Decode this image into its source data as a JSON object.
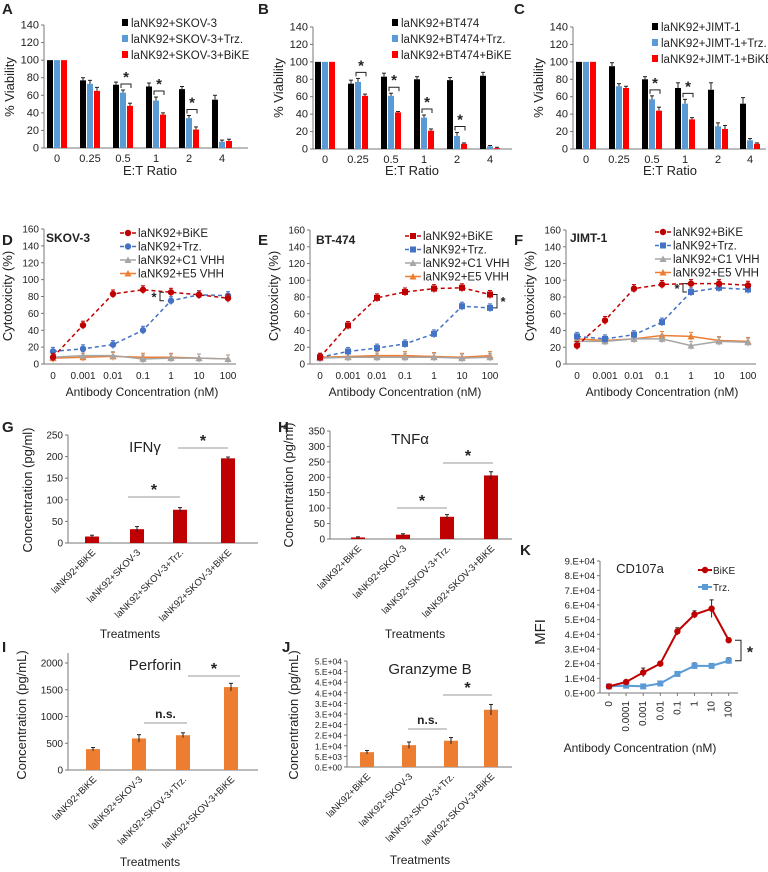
{
  "chart_data": [
    {
      "panel": "A",
      "type": "bar",
      "xlabel": "E:T Ratio",
      "ylabel": "% Viability",
      "categories": [
        "0",
        "0.25",
        "0.5",
        "1",
        "2",
        "4"
      ],
      "ylim": [
        0,
        140
      ],
      "yticks": [
        "0",
        "20",
        "40",
        "60",
        "80",
        "100",
        "120",
        "140"
      ],
      "legend": "top-right",
      "series": [
        {
          "name": "laNK92+SKOV-3",
          "color": "#000000",
          "values": [
            100,
            77,
            72,
            70,
            67,
            55
          ],
          "errors": [
            0,
            3,
            3,
            4,
            3,
            5
          ]
        },
        {
          "name": "laNK92+SKOV-3+Trz.",
          "color": "#5b9bd5",
          "values": [
            100,
            73,
            63,
            54,
            34,
            7
          ],
          "errors": [
            0,
            4,
            3,
            4,
            3,
            2
          ]
        },
        {
          "name": "laNK92+SKOV-3+BiKE",
          "color": "#ff0000",
          "values": [
            100,
            65,
            48,
            38,
            21,
            8
          ],
          "errors": [
            0,
            4,
            3,
            2,
            3,
            2
          ]
        }
      ],
      "significance": [
        {
          "category": 2,
          "label": "*"
        },
        {
          "category": 3,
          "label": "*"
        },
        {
          "category": 4,
          "label": "*"
        }
      ]
    },
    {
      "panel": "B",
      "type": "bar",
      "xlabel": "E:T Ratio",
      "ylabel": "% Viability",
      "categories": [
        "0",
        "0.25",
        "0.5",
        "1",
        "2",
        "4"
      ],
      "ylim": [
        0,
        140
      ],
      "yticks": [
        "0",
        "20",
        "40",
        "60",
        "80",
        "100",
        "120",
        "140"
      ],
      "legend": "top-right",
      "series": [
        {
          "name": "laNK92+BT474",
          "color": "#000000",
          "values": [
            100,
            75,
            83,
            80,
            79,
            84
          ],
          "errors": [
            0,
            4,
            4,
            3,
            3,
            4
          ]
        },
        {
          "name": "laNK92+BT474+Trz.",
          "color": "#5b9bd5",
          "values": [
            100,
            77,
            61,
            36,
            15,
            3
          ],
          "errors": [
            0,
            4,
            3,
            3,
            4,
            1
          ]
        },
        {
          "name": "laNK92+BT474+BiKE",
          "color": "#ff0000",
          "values": [
            100,
            61,
            42,
            21,
            6,
            1
          ],
          "errors": [
            0,
            2,
            1,
            2,
            1,
            1
          ]
        }
      ],
      "significance": [
        {
          "category": 1,
          "label": "*"
        },
        {
          "category": 2,
          "label": "*"
        },
        {
          "category": 3,
          "label": "*"
        },
        {
          "category": 4,
          "label": "*"
        }
      ]
    },
    {
      "panel": "C",
      "type": "bar",
      "xlabel": "E:T Ratio",
      "ylabel": "% Viability",
      "categories": [
        "0",
        "0.25",
        "0.5",
        "1",
        "2",
        "4"
      ],
      "ylim": [
        0,
        140
      ],
      "yticks": [
        "0",
        "20",
        "40",
        "60",
        "80",
        "100",
        "120",
        "140"
      ],
      "legend": "top-right",
      "series": [
        {
          "name": "laNK92+JIMT-1",
          "color": "#000000",
          "values": [
            100,
            95,
            80,
            70,
            68,
            52
          ],
          "errors": [
            0,
            4,
            3,
            6,
            8,
            7
          ]
        },
        {
          "name": "laNK92+JIMT-1+Trz.",
          "color": "#5b9bd5",
          "values": [
            100,
            72,
            57,
            52,
            26,
            10
          ],
          "errors": [
            0,
            3,
            4,
            5,
            4,
            2
          ]
        },
        {
          "name": "laNK92+JIMT-1+BiKE",
          "color": "#ff0000",
          "values": [
            100,
            70,
            44,
            34,
            23,
            6
          ],
          "errors": [
            0,
            2,
            4,
            2,
            4,
            1
          ]
        }
      ],
      "significance": [
        {
          "category": 2,
          "label": "*"
        },
        {
          "category": 3,
          "label": "*"
        }
      ]
    },
    {
      "panel": "D",
      "type": "line",
      "cell_line": "SKOV-3",
      "xlabel": "Antibody Concentration (nM)",
      "ylabel": "Cytotoxicity (%)",
      "categories": [
        "0",
        "0.001",
        "0.01",
        "0.1",
        "1",
        "10",
        "100"
      ],
      "ylim": [
        0,
        160
      ],
      "yticks": [
        "0",
        "20",
        "40",
        "60",
        "80",
        "100",
        "120",
        "140",
        "160"
      ],
      "legend": "top-right",
      "series": [
        {
          "name": "laNK92+BiKE",
          "color": "#c00000",
          "marker": "circle",
          "dashed": true,
          "values": [
            8,
            46,
            83,
            88,
            85,
            82,
            78
          ]
        },
        {
          "name": "laNK92+Trz.",
          "color": "#4472c4",
          "marker": "circle",
          "dashed": true,
          "values": [
            15,
            18,
            23,
            40,
            75,
            82,
            81
          ]
        },
        {
          "name": "laNK92+C1 VHH",
          "color": "#a5a5a5",
          "marker": "triangle",
          "dashed": false,
          "values": [
            8,
            10,
            10,
            6,
            7,
            7,
            6
          ]
        },
        {
          "name": "laNK92+E5 VHH",
          "color": "#ed7d31",
          "marker": "triangle",
          "dashed": false,
          "values": [
            7,
            8,
            9,
            8,
            8,
            7,
            6
          ]
        }
      ],
      "significance": [
        {
          "category": 4,
          "label": "*"
        }
      ]
    },
    {
      "panel": "E",
      "type": "line",
      "cell_line": "BT-474",
      "xlabel": "Antibody Concentration (nM)",
      "ylabel": "Cytotoxicity (%)",
      "categories": [
        "0",
        "0.001",
        "0.01",
        "0.1",
        "1",
        "10",
        "100"
      ],
      "ylim": [
        0,
        160
      ],
      "yticks": [
        "0",
        "20",
        "40",
        "60",
        "80",
        "100",
        "120",
        "140",
        "160"
      ],
      "legend": "top-right",
      "series": [
        {
          "name": "laNK92+BiKE",
          "color": "#c00000",
          "marker": "square",
          "dashed": true,
          "values": [
            8,
            46,
            79,
            86,
            90,
            91,
            83
          ]
        },
        {
          "name": "laNK92+Trz.",
          "color": "#4472c4",
          "marker": "square",
          "dashed": true,
          "values": [
            8,
            15,
            19,
            24,
            36,
            69,
            67
          ]
        },
        {
          "name": "laNK92+C1 VHH",
          "color": "#a5a5a5",
          "marker": "triangle",
          "dashed": false,
          "values": [
            7,
            8,
            8,
            8,
            8,
            7,
            8
          ]
        },
        {
          "name": "laNK92+E5 VHH",
          "color": "#ed7d31",
          "marker": "triangle",
          "dashed": false,
          "values": [
            8,
            9,
            10,
            10,
            9,
            8,
            10
          ]
        }
      ],
      "significance": [
        {
          "category": 6,
          "label": "*"
        }
      ]
    },
    {
      "panel": "F",
      "type": "line",
      "cell_line": "JIMT-1",
      "xlabel": "Antibody Concentration (nM)",
      "ylabel": "Cytotoxicity (%)",
      "categories": [
        "0",
        "0.001",
        "0.01",
        "0.1",
        "1",
        "10",
        "100"
      ],
      "ylim": [
        0,
        160
      ],
      "yticks": [
        "0",
        "20",
        "40",
        "60",
        "80",
        "100",
        "120",
        "140",
        "160"
      ],
      "legend": "top-right",
      "series": [
        {
          "name": "laNK92+BiKE",
          "color": "#c00000",
          "marker": "circle",
          "dashed": true,
          "values": [
            22,
            52,
            90,
            95,
            96,
            96,
            94
          ]
        },
        {
          "name": "laNK92+Trz.",
          "color": "#4472c4",
          "marker": "square",
          "dashed": true,
          "values": [
            33,
            30,
            35,
            50,
            86,
            91,
            89
          ]
        },
        {
          "name": "laNK92+C1 VHH",
          "color": "#a5a5a5",
          "marker": "triangle",
          "dashed": false,
          "values": [
            27,
            27,
            30,
            30,
            22,
            27,
            26
          ]
        },
        {
          "name": "laNK92+E5 VHH",
          "color": "#ed7d31",
          "marker": "triangle",
          "dashed": false,
          "values": [
            30,
            28,
            30,
            34,
            33,
            28,
            27
          ]
        }
      ],
      "significance": [
        {
          "category": 4,
          "label": "*"
        }
      ]
    },
    {
      "panel": "G",
      "type": "bar",
      "title": "IFNγ",
      "xlabel": "Treatments",
      "ylabel": "Concentration  (pg/ml)",
      "categories": [
        "laNK92+BiKE",
        "laNK92+SKOV-3",
        "laNK92+SKOV-3+Trz.",
        "laNK92+SKOV-3+BiKE"
      ],
      "ylim": [
        0,
        250
      ],
      "yticks": [
        "0",
        "50",
        "100",
        "150",
        "200",
        "250"
      ],
      "color": "#c00000",
      "values": [
        15,
        32,
        77,
        196
      ],
      "errors": [
        3,
        6,
        5,
        3
      ],
      "significance": [
        {
          "from": 1,
          "to": 2,
          "label": "*"
        },
        {
          "from": 2,
          "to": 3,
          "label": "*"
        }
      ]
    },
    {
      "panel": "H",
      "type": "bar",
      "title": "TNFα",
      "xlabel": "Treatments",
      "ylabel": "Concentration (pg/ml)",
      "categories": [
        "laNK92+BiKE",
        "laNK92+SKOV-3",
        "laNK92+SKOV-3+Trz.",
        "laNK92+SKOV-3+BiKE"
      ],
      "ylim": [
        0,
        350
      ],
      "yticks": [
        "0",
        "50",
        "100",
        "150",
        "200",
        "250",
        "300",
        "350"
      ],
      "color": "#c00000",
      "values": [
        5,
        14,
        72,
        206
      ],
      "errors": [
        2,
        3,
        7,
        12
      ],
      "significance": [
        {
          "from": 1,
          "to": 2,
          "label": "*"
        },
        {
          "from": 2,
          "to": 3,
          "label": "*"
        }
      ]
    },
    {
      "panel": "I",
      "type": "bar",
      "title": "Perforin",
      "xlabel": "Treatments",
      "ylabel": "Concentration  (pg/mL)",
      "categories": [
        "laNK92+BiKE",
        "laNK92+SKOV-3",
        "laNK92+SKOV-3+Trz.",
        "laNK92+SKOV-3+BiKE"
      ],
      "ylim": [
        0,
        2000
      ],
      "yticks": [
        "0",
        "500",
        "1000",
        "1500",
        "2000"
      ],
      "color": "#ed7d31",
      "values": [
        390,
        590,
        650,
        1550
      ],
      "errors": [
        30,
        70,
        45,
        70
      ],
      "significance": [
        {
          "from": 1,
          "to": 2,
          "label": "n.s."
        },
        {
          "from": 2,
          "to": 3,
          "label": "*"
        }
      ]
    },
    {
      "panel": "J",
      "type": "bar",
      "title": "Granzyme B",
      "xlabel": "Treatments",
      "ylabel": "Concentration (pg/mL)",
      "categories": [
        "laNK92+BiKE",
        "laNK92+SKOV-3",
        "laNK92+SKOV-3+Trz.",
        "laNK92+SKOV-3+BiKE"
      ],
      "ylim": [
        0,
        50000
      ],
      "yticks": [
        "0.E+00",
        "5.E+03",
        "1.E+04",
        "2.E+04",
        "2.E+04",
        "3.E+04",
        "3.E+04",
        "4.E+04",
        "4.E+04",
        "5.E+04",
        "5.E+04"
      ],
      "color": "#ed7d31",
      "values": [
        7000,
        10300,
        12400,
        27000
      ],
      "errors": [
        800,
        1500,
        1500,
        2500
      ],
      "significance": [
        {
          "from": 1,
          "to": 2,
          "label": "n.s."
        },
        {
          "from": 2,
          "to": 3,
          "label": "*"
        }
      ]
    },
    {
      "panel": "K",
      "type": "line",
      "title": "CD107a",
      "xlabel": "Antibody Concentration (nM)",
      "ylabel": "MFI",
      "categories": [
        "0",
        "0.0001",
        "0.001",
        "0.01",
        "0.1",
        "1",
        "10",
        "100"
      ],
      "ylim": [
        0,
        90000
      ],
      "yticks": [
        "0.E+00",
        "1.E+04",
        "2.E+04",
        "3.E+04",
        "4.E+04",
        "5.E+04",
        "6.E+04",
        "7.E+04",
        "8.E+04",
        "9.E+04"
      ],
      "legend": "top-right",
      "series": [
        {
          "name": "BiKE",
          "color": "#c00000",
          "marker": "circle",
          "values": [
            4500,
            7500,
            14000,
            20000,
            42000,
            53500,
            57500,
            36000
          ],
          "errors": [
            500,
            800,
            3000,
            1500,
            2500,
            2500,
            6000,
            1000
          ]
        },
        {
          "name": "Trz.",
          "color": "#5b9bd5",
          "marker": "square",
          "values": [
            4500,
            5000,
            4500,
            6500,
            13000,
            18500,
            18500,
            22000
          ],
          "errors": [
            500,
            500,
            500,
            800,
            1500,
            2000,
            1000,
            2000
          ]
        }
      ],
      "significance": [
        {
          "category": 7,
          "label": "*"
        }
      ]
    }
  ]
}
